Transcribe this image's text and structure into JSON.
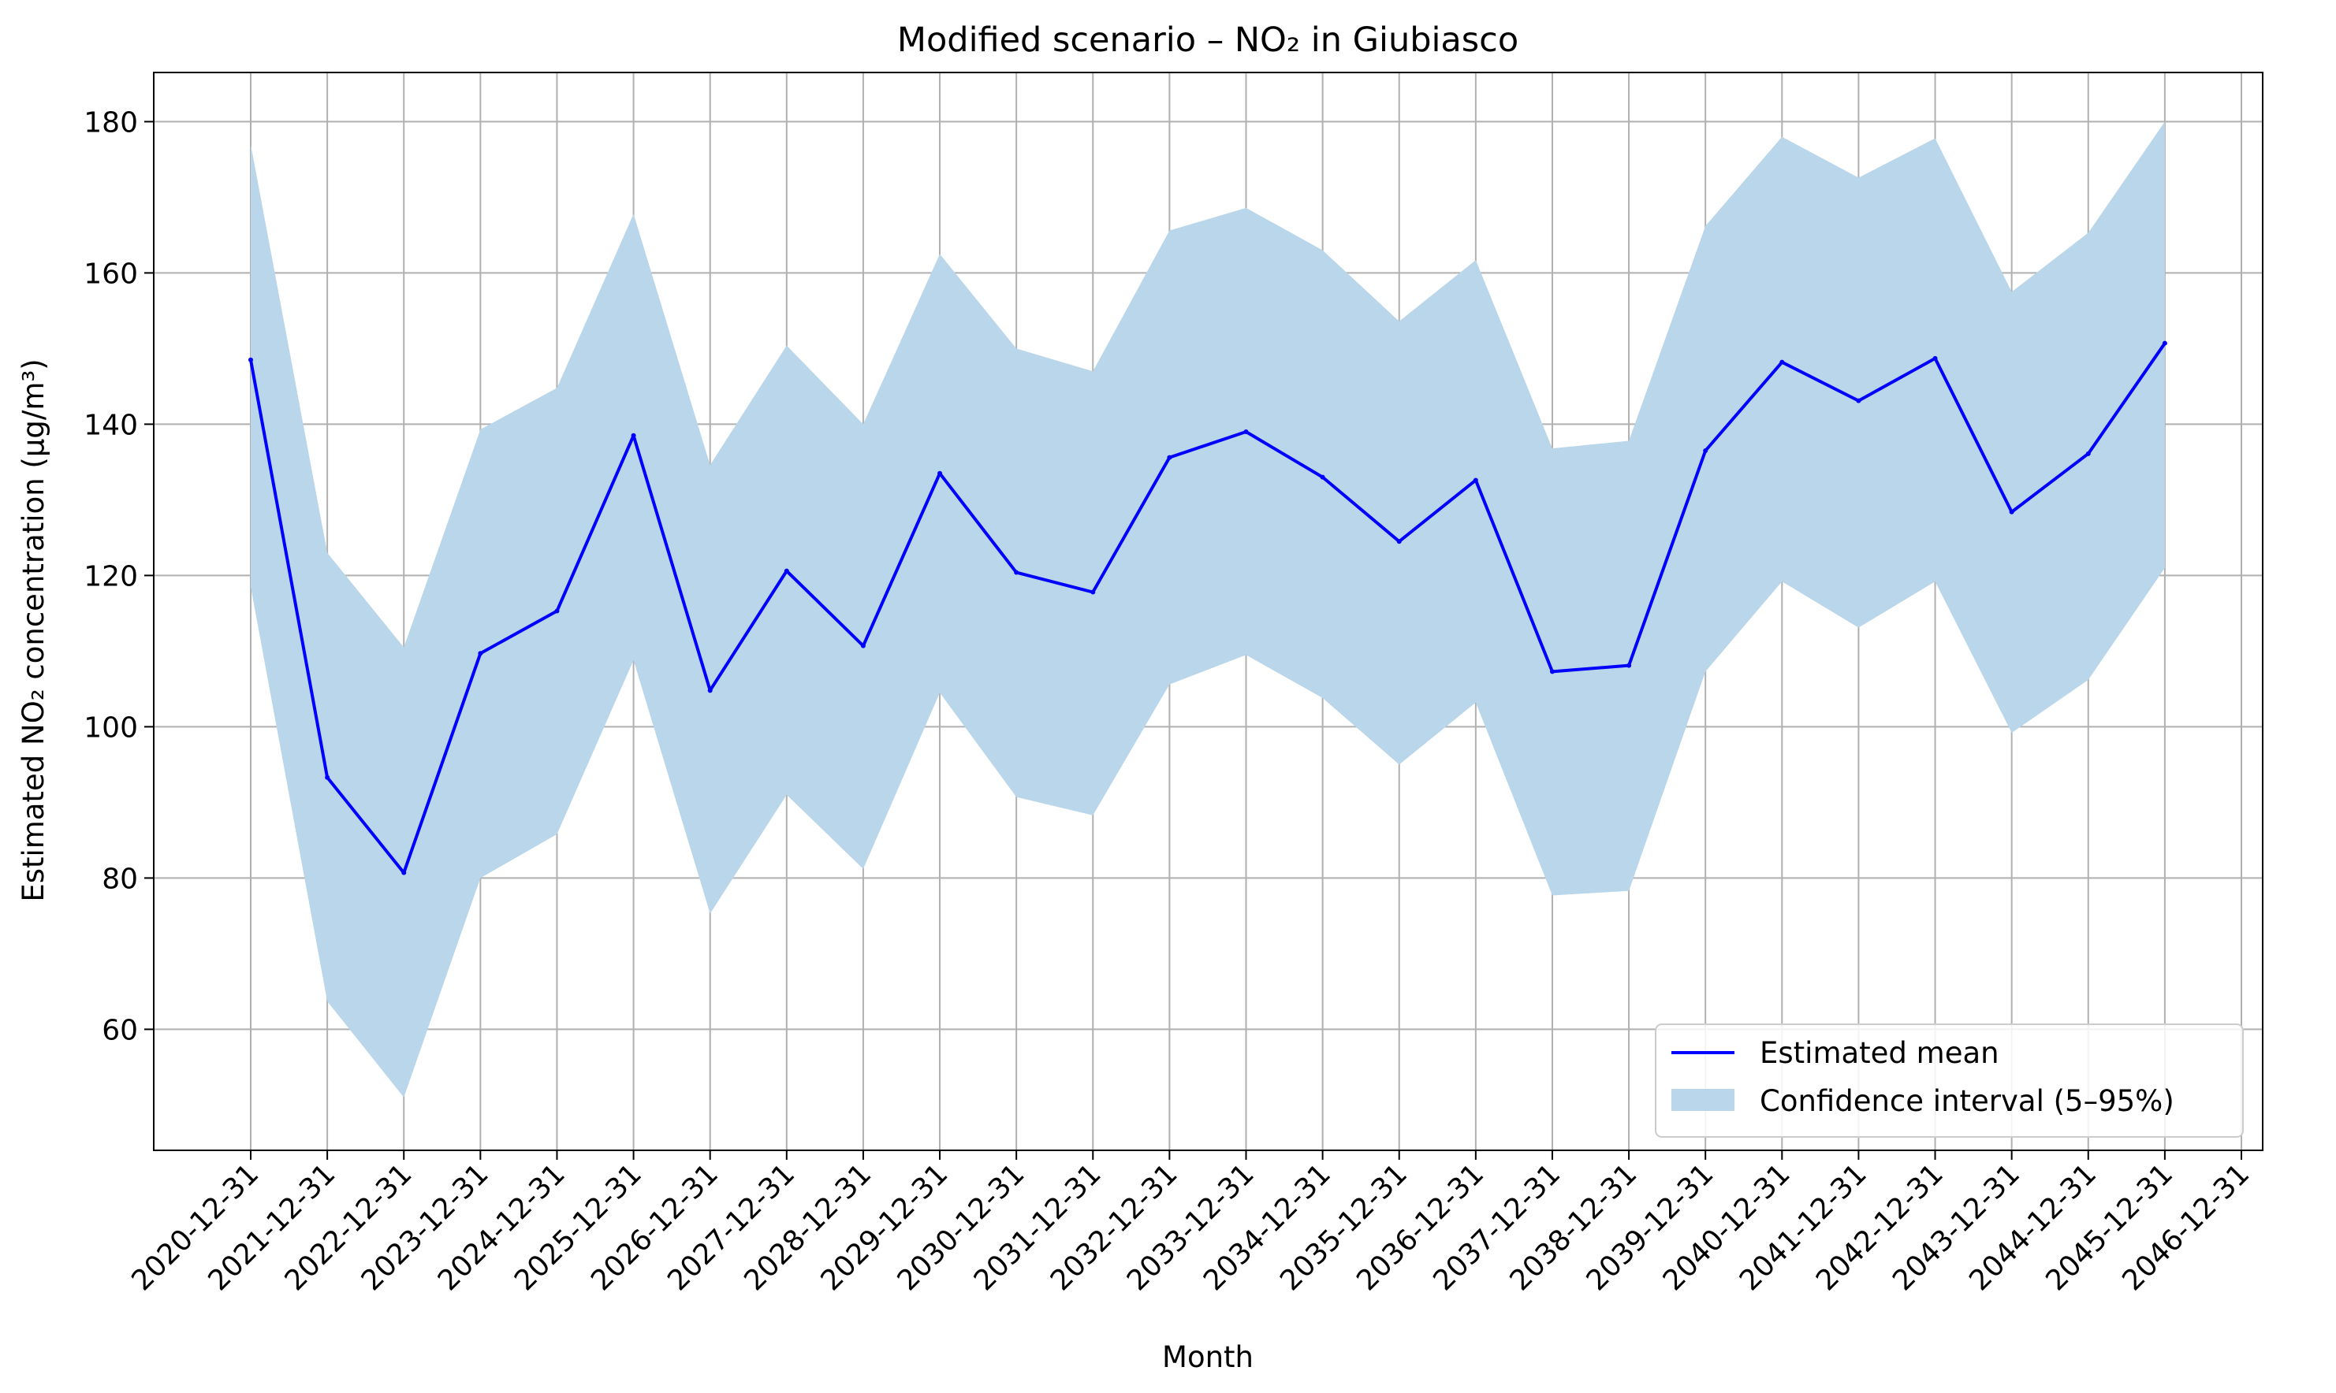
{
  "chart_data": {
    "type": "line",
    "title": "Modified scenario – NO₂ in Giubiasco",
    "xlabel": "Month",
    "ylabel": "Estimated NO₂ concentration (µg/m³)",
    "x": [
      "2020-12-31",
      "2021-12-31",
      "2022-12-31",
      "2023-12-31",
      "2024-12-31",
      "2025-12-31",
      "2026-12-31",
      "2027-12-31",
      "2028-12-31",
      "2029-12-31",
      "2030-12-31",
      "2031-12-31",
      "2032-12-31",
      "2033-12-31",
      "2034-12-31",
      "2035-12-31",
      "2036-12-31",
      "2037-12-31",
      "2038-12-31",
      "2039-12-31",
      "2040-12-31",
      "2041-12-31",
      "2042-12-31",
      "2043-12-31",
      "2044-12-31",
      "2045-12-31"
    ],
    "x_ticks": [
      "2020-12-31",
      "2021-12-31",
      "2022-12-31",
      "2023-12-31",
      "2024-12-31",
      "2025-12-31",
      "2026-12-31",
      "2027-12-31",
      "2028-12-31",
      "2029-12-31",
      "2030-12-31",
      "2031-12-31",
      "2032-12-31",
      "2033-12-31",
      "2034-12-31",
      "2035-12-31",
      "2036-12-31",
      "2037-12-31",
      "2038-12-31",
      "2039-12-31",
      "2040-12-31",
      "2041-12-31",
      "2042-12-31",
      "2043-12-31",
      "2044-12-31",
      "2045-12-31",
      "2046-12-31"
    ],
    "series": [
      {
        "name": "Estimated mean",
        "values": [
          148.5,
          93.3,
          80.7,
          109.7,
          115.3,
          138.5,
          104.8,
          120.6,
          110.7,
          133.5,
          120.4,
          117.8,
          135.6,
          139.0,
          133.0,
          124.5,
          132.6,
          107.3,
          108.1,
          136.5,
          148.2,
          143.1,
          148.7,
          128.4,
          136.1,
          150.7
        ],
        "color": "#0000ff"
      }
    ],
    "band": {
      "name": "Confidence interval (5–95%)",
      "lower": [
        118.5,
        63.7,
        51.0,
        80.0,
        85.8,
        108.8,
        75.3,
        91.0,
        81.2,
        104.5,
        90.7,
        88.3,
        105.6,
        109.5,
        103.8,
        95.0,
        103.2,
        77.7,
        78.3,
        107.3,
        119.2,
        113.1,
        119.2,
        99.2,
        106.2,
        121.0
      ],
      "upper": [
        177.0,
        123.0,
        110.5,
        139.3,
        144.8,
        167.8,
        134.6,
        150.4,
        140.0,
        162.5,
        150.0,
        147.0,
        165.6,
        168.6,
        163.0,
        153.6,
        161.7,
        136.8,
        137.8,
        166.2,
        178.0,
        172.6,
        177.8,
        157.5,
        165.3,
        180.0
      ],
      "color": "#bad6ea"
    },
    "ylim": [
      44.0,
      186.5
    ],
    "y_ticks": [
      60,
      80,
      100,
      120,
      140,
      160,
      180
    ],
    "grid": true,
    "legend_position": "lower-right"
  }
}
